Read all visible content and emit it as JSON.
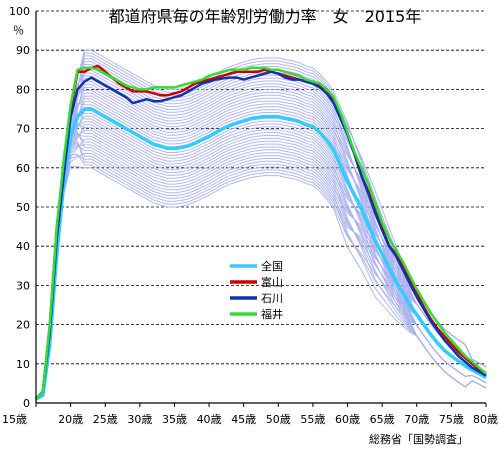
{
  "chart_data": {
    "type": "line",
    "title": "都道府県毎の年齢別労働力率　女　2015年",
    "ylabel": "％",
    "xlabel": "",
    "source": "総務省「国勢調査」",
    "grid": true,
    "legend_placement": "center",
    "xlim": [
      15,
      80
    ],
    "ylim": [
      0,
      100
    ],
    "x_ticks": [
      15,
      20,
      25,
      30,
      35,
      40,
      45,
      50,
      55,
      60,
      65,
      70,
      75,
      80
    ],
    "x_tick_labels": [
      "15歳",
      "20歳",
      "25歳",
      "30歳",
      "35歳",
      "40歳",
      "45歳",
      "50歳",
      "55歳",
      "60歳",
      "65歳",
      "70歳",
      "75歳",
      "80歳"
    ],
    "y_ticks": [
      0,
      10,
      20,
      30,
      40,
      50,
      60,
      70,
      80,
      90,
      100
    ],
    "y_tick_labels": [
      "0",
      "10",
      "20",
      "30",
      "40",
      "50",
      "60",
      "70",
      "80",
      "90",
      "100"
    ],
    "x": [
      15,
      16,
      17,
      18,
      19,
      20,
      21,
      22,
      23,
      24,
      25,
      26,
      27,
      28,
      29,
      30,
      31,
      32,
      33,
      34,
      35,
      36,
      37,
      38,
      39,
      40,
      41,
      42,
      43,
      44,
      45,
      46,
      47,
      48,
      49,
      50,
      51,
      52,
      53,
      54,
      55,
      56,
      57,
      58,
      59,
      60,
      61,
      62,
      63,
      64,
      65,
      66,
      67,
      68,
      69,
      70,
      71,
      72,
      73,
      74,
      75,
      76,
      77,
      78,
      79,
      80
    ],
    "series": [
      {
        "name": "全国",
        "color": "#33ccff",
        "width": 3.5,
        "values": [
          1,
          2,
          15,
          38,
          56,
          68,
          73,
          75,
          75,
          74,
          73,
          72,
          71,
          70,
          69,
          68,
          67,
          66,
          65.5,
          65,
          65,
          65.2,
          65.6,
          66.3,
          67.2,
          68,
          69,
          70,
          70.8,
          71.4,
          72,
          72.5,
          72.8,
          73,
          73,
          73,
          72.6,
          72.3,
          71.8,
          71,
          70.5,
          69,
          67,
          64.5,
          60.5,
          56.5,
          53,
          49.5,
          45.5,
          41.5,
          38,
          34.5,
          31,
          28,
          25,
          22.5,
          20,
          17.5,
          15.3,
          13.4,
          12,
          10.7,
          9.5,
          8.4,
          7.5,
          6.5
        ]
      },
      {
        "name": "富山",
        "color": "#cc0000",
        "width": 2.5,
        "values": [
          1,
          3,
          20,
          45,
          60,
          75,
          84.5,
          84.5,
          85.5,
          86,
          84.5,
          83,
          81.5,
          80.5,
          79.5,
          79.5,
          79.5,
          79,
          78.5,
          78.5,
          79,
          79.5,
          80.5,
          81.5,
          82,
          82.5,
          83,
          83.5,
          84,
          84.5,
          84.5,
          84.5,
          84.5,
          85,
          84.5,
          84,
          83.5,
          83,
          82.5,
          82,
          82,
          81,
          80,
          77.5,
          73.5,
          69,
          63.5,
          58,
          54,
          49,
          44.5,
          40,
          38,
          35,
          31.5,
          28,
          24.5,
          21.5,
          19,
          17,
          15,
          13,
          11.5,
          10,
          8.5,
          7
        ]
      },
      {
        "name": "石川",
        "color": "#1133aa",
        "width": 2.5,
        "values": [
          1,
          3,
          18,
          42,
          58,
          73,
          80,
          82,
          83,
          82,
          81,
          80,
          79,
          78,
          76.5,
          77,
          77.5,
          77,
          77,
          77.5,
          78,
          78.5,
          79.5,
          80.5,
          81.5,
          82,
          82.5,
          82.8,
          83,
          83,
          82.5,
          83,
          83.5,
          84,
          84.5,
          84,
          83,
          82.5,
          82.5,
          82,
          81.5,
          80.5,
          79,
          76.5,
          72.5,
          68.5,
          63.5,
          58,
          53.5,
          48.5,
          44,
          40,
          37.5,
          34,
          30.5,
          27,
          24,
          21,
          18.5,
          16,
          14,
          12,
          10.5,
          9,
          8,
          7
        ]
      },
      {
        "name": "福井",
        "color": "#33dd33",
        "width": 2.5,
        "values": [
          1,
          3,
          20,
          45,
          62,
          76,
          85,
          85.5,
          85.5,
          85,
          84,
          83,
          82,
          81,
          80.5,
          80,
          80,
          80.5,
          80.5,
          80.5,
          80.5,
          81,
          81.5,
          82,
          82.5,
          83.5,
          84,
          84.5,
          85,
          85,
          85,
          85.5,
          85.5,
          85.5,
          85,
          85,
          84.5,
          84,
          83.5,
          82.5,
          82,
          81.5,
          80,
          78,
          74,
          69,
          64,
          60,
          56,
          51,
          46,
          42,
          39,
          36,
          32.5,
          29,
          26,
          23,
          20.5,
          18,
          16,
          14,
          12,
          10.5,
          9,
          7.5
        ]
      }
    ]
  },
  "legend": [
    {
      "label": "全国",
      "color": "#33ccff"
    },
    {
      "label": "富山",
      "color": "#cc0000"
    },
    {
      "label": "石川",
      "color": "#1133aa"
    },
    {
      "label": "福井",
      "color": "#33dd33"
    }
  ]
}
